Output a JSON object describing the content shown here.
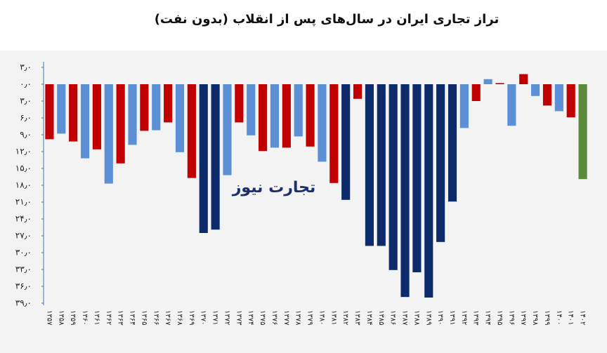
{
  "chart_data": {
    "type": "bar",
    "title": "تراز تجاری ایران در سال‌های پس از انقلاب (بدون نفت)",
    "watermark": "تجارت نیوز",
    "categories": [
      "۱۳۵۷",
      "۱۳۵۸",
      "۱۳۵۹",
      "۱۳۶۰",
      "۱۳۶۱",
      "۱۳۶۲",
      "۱۳۶۳",
      "۱۳۶۴",
      "۱۳۶۵",
      "۱۳۶۶",
      "۱۳۶۷",
      "۱۳۶۸",
      "۱۳۶۹",
      "۱۳۷۰",
      "۱۳۷۱",
      "۱۳۷۲",
      "۱۳۷۳",
      "۱۳۷۴",
      "۱۳۷۵",
      "۱۳۷۶",
      "۱۳۷۷",
      "۱۳۷۸",
      "۱۳۷۹",
      "۱۳۸۰",
      "۱۳۸۱",
      "۱۳۸۲",
      "۱۳۸۳",
      "۱۳۸۴",
      "۱۳۸۵",
      "۱۳۸۶",
      "۱۳۸۷",
      "۱۳۸۸",
      "۱۳۸۹",
      "۱۳۹۰",
      "۱۳۹۱",
      "۱۳۹۲",
      "۱۳۹۳",
      "۱۳۹۴",
      "۱۳۹۵",
      "۱۳۹۶",
      "۱۳۹۷",
      "۱۳۹۸",
      "۱۳۹۹",
      "۱۴۰۰",
      "۱۴۰۱",
      "۱۴۰۲"
    ],
    "values": [
      -9.8,
      -8.8,
      -10.2,
      -13.2,
      -11.6,
      -17.7,
      -14.1,
      -10.8,
      -8.3,
      -8.2,
      -6.8,
      -12.1,
      -16.7,
      -26.5,
      -25.9,
      -16.2,
      -6.8,
      -9.1,
      -11.9,
      -11.3,
      -11.3,
      -9.3,
      -11.1,
      -13.8,
      -17.6,
      -20.6,
      -2.6,
      -28.8,
      -28.8,
      -33.1,
      -37.9,
      -33.5,
      -38.0,
      -28.1,
      -20.9,
      -7.8,
      -3.0,
      0.9,
      0.2,
      -7.4,
      1.8,
      -2.1,
      -3.8,
      -4.8,
      -5.9,
      -16.9
    ],
    "colors": [
      "#c00000",
      "#5b8fd6",
      "#c00000",
      "#5b8fd6",
      "#c00000",
      "#5b8fd6",
      "#c00000",
      "#5b8fd6",
      "#c00000",
      "#5b8fd6",
      "#c00000",
      "#5b8fd6",
      "#c00000",
      "#0d2a6b",
      "#0d2a6b",
      "#5b8fd6",
      "#c00000",
      "#5b8fd6",
      "#c00000",
      "#5b8fd6",
      "#c00000",
      "#5b8fd6",
      "#c00000",
      "#5b8fd6",
      "#c00000",
      "#0d2a6b",
      "#c00000",
      "#0d2a6b",
      "#0d2a6b",
      "#0d2a6b",
      "#0d2a6b",
      "#0d2a6b",
      "#0d2a6b",
      "#0d2a6b",
      "#0d2a6b",
      "#5b8fd6",
      "#c00000",
      "#5b8fd6",
      "#c00000",
      "#5b8fd6",
      "#c00000",
      "#5b8fd6",
      "#c00000",
      "#5b8fd6",
      "#c00000",
      "#5a8a3a"
    ],
    "ylim": [
      -39,
      4
    ],
    "yticks": [
      {
        "value": 3,
        "label": "۳٫۰"
      },
      {
        "value": 0,
        "label": "۰٫۰"
      },
      {
        "value": -3,
        "label": "۳٫۰"
      },
      {
        "value": -6,
        "label": "۶٫۰"
      },
      {
        "value": -9,
        "label": "۹٫۰"
      },
      {
        "value": -12,
        "label": "۱۲٫۰"
      },
      {
        "value": -15,
        "label": "۱۵٫۰"
      },
      {
        "value": -18,
        "label": "۱۸٫۰"
      },
      {
        "value": -21,
        "label": "۲۱٫۰"
      },
      {
        "value": -24,
        "label": "۲۴٫۰"
      },
      {
        "value": -27,
        "label": "۲۷٫۰"
      },
      {
        "value": -30,
        "label": "۳۰٫۰"
      },
      {
        "value": -33,
        "label": "۳۳٫۰"
      },
      {
        "value": -36,
        "label": "۳۶٫۰"
      },
      {
        "value": -39,
        "label": "۳۹٫۰"
      }
    ],
    "grid": false
  }
}
